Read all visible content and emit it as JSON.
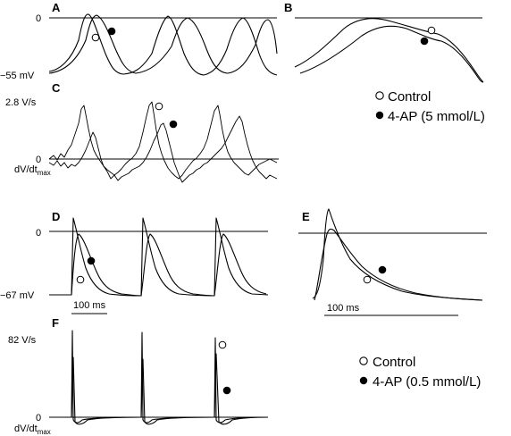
{
  "panels": {
    "a": "A",
    "b": "B",
    "c": "C",
    "d": "D",
    "e": "E",
    "f": "F"
  },
  "legend_top": {
    "control": "Control",
    "drug": "4-AP (5 mmol/L)"
  },
  "legend_bottom": {
    "control": "Control",
    "drug": "4-AP (0.5 mmol/L)"
  },
  "axis": {
    "a_top": "0",
    "a_bottom": "−55 mV",
    "c_top": "2.8 V/s",
    "c_zero": "0",
    "c_unit_main": "dV/dt",
    "c_unit_sub": "max",
    "d_top": "0",
    "d_bottom": "−67 mV",
    "f_top": "82 V/s",
    "f_zero": "0",
    "f_unit_main": "dV/dt",
    "f_unit_sub": "max"
  },
  "scalebars": {
    "d": "100 ms",
    "e": "100 ms"
  },
  "colors": {
    "ink": "#000000",
    "background": "#ffffff"
  },
  "chart_data": [
    {
      "type": "line",
      "panel": "A",
      "ylabel": "mV",
      "ylim": [
        -55,
        0
      ],
      "series": [
        {
          "marker": "open-circle",
          "peaks_count": 3
        },
        {
          "marker": "filled-circle",
          "peaks_count": 3
        }
      ]
    },
    {
      "type": "line",
      "panel": "B",
      "series": [
        {
          "marker": "open-circle"
        },
        {
          "marker": "filled-circle"
        }
      ]
    },
    {
      "type": "line",
      "panel": "C",
      "ylabel": "dV/dt max",
      "ylim": [
        0,
        2.8
      ],
      "series": [
        {
          "marker": "open-circle"
        },
        {
          "marker": "filled-circle"
        }
      ]
    },
    {
      "type": "line",
      "panel": "D",
      "ylabel": "mV",
      "ylim": [
        -67,
        0
      ],
      "series": [
        {
          "marker": "open-circle",
          "peaks_count": 3
        },
        {
          "marker": "filled-circle",
          "peaks_count": 3
        }
      ]
    },
    {
      "type": "line",
      "panel": "E",
      "series": [
        {
          "marker": "open-circle"
        },
        {
          "marker": "filled-circle"
        }
      ]
    },
    {
      "type": "line",
      "panel": "F",
      "ylabel": "dV/dt max",
      "ylim": [
        0,
        82
      ],
      "series": [
        {
          "marker": "open-circle"
        },
        {
          "marker": "filled-circle"
        }
      ]
    }
  ]
}
